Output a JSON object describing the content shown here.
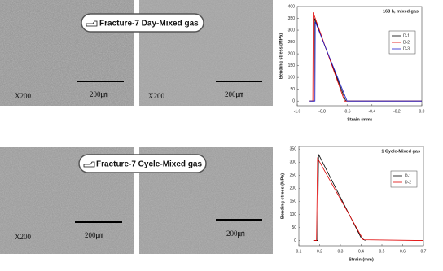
{
  "panels": [
    {
      "label": "Fracture-7 Day-Mixed gas",
      "images": [
        {
          "magnification": "X200",
          "scale": "200㎛"
        },
        {
          "magnification": "X200",
          "scale": "200㎛"
        }
      ]
    },
    {
      "label": "Fracture-7 Cycle-Mixed gas",
      "images": [
        {
          "magnification": "X200",
          "scale": "200㎛"
        },
        {
          "scale": "200㎛"
        }
      ]
    }
  ],
  "chart_data": [
    {
      "type": "line",
      "title": "168 h, mixed gas",
      "x_label": "Strain (mm)",
      "y_label": "Bending stress (MPa)",
      "xlim": [
        -1,
        0
      ],
      "xticks": [
        {
          "value": -1,
          "label": "-1.0"
        },
        -0.8,
        -0.6,
        -0.4,
        -0.2,
        {
          "value": 0,
          "label": "0.0"
        }
      ],
      "ylim": [
        -20,
        400
      ],
      "yticks": [
        0,
        50,
        100,
        150,
        200,
        250,
        300,
        350,
        400
      ],
      "legend": "upper-right",
      "series": [
        {
          "name": "D-1",
          "color": "#000000",
          "x": [
            -0.9,
            -0.865,
            -0.862,
            -0.61,
            0
          ],
          "values": [
            0,
            0,
            350,
            0,
            0
          ]
        },
        {
          "name": "D-2",
          "color": "#e00000",
          "x": [
            -0.9,
            -0.875,
            -0.872,
            -0.62,
            0
          ],
          "values": [
            0,
            0,
            375,
            0,
            0
          ]
        },
        {
          "name": "D-3",
          "color": "#2020d0",
          "x": [
            -0.9,
            -0.858,
            -0.855,
            -0.6,
            0
          ],
          "values": [
            0,
            0,
            335,
            0,
            0
          ]
        }
      ]
    },
    {
      "type": "line",
      "title": "1 Cycle-Mixed gas",
      "x_label": "Strain (mm)",
      "y_label": "Bending stress (MPa)",
      "xlim": [
        0.1,
        0.7
      ],
      "xticks": [
        0.1,
        0.2,
        0.3,
        0.4,
        0.5,
        0.6,
        0.7
      ],
      "ylim": [
        -20,
        360
      ],
      "yticks": [
        0,
        50,
        100,
        150,
        200,
        250,
        300,
        350
      ],
      "legend": "upper-right",
      "series": [
        {
          "name": "D-1",
          "color": "#000000",
          "x": [
            0.17,
            0.19,
            0.195,
            0.4,
            0.42
          ],
          "values": [
            0,
            0,
            330,
            10,
            0
          ]
        },
        {
          "name": "D-2",
          "color": "#e00000",
          "x": [
            0.17,
            0.185,
            0.19,
            0.41,
            0.7
          ],
          "values": [
            0,
            0,
            315,
            3,
            0
          ]
        }
      ]
    }
  ]
}
